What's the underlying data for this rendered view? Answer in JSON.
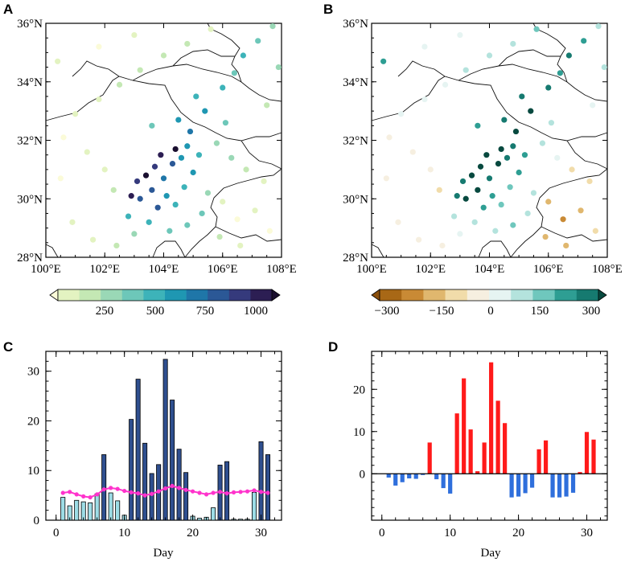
{
  "chart_data": [
    {
      "panel": "A",
      "type": "scatter",
      "title": "",
      "xlabel": "",
      "ylabel": "",
      "x_range": [
        100,
        108
      ],
      "y_range": [
        28,
        36
      ],
      "x_ticks": [
        "100°E",
        "102°E",
        "104°E",
        "106°E",
        "108°E"
      ],
      "y_ticks": [
        "28°N",
        "30°N",
        "32°N",
        "34°N",
        "36°N"
      ],
      "colorbar": {
        "labels": [
          "250",
          "500",
          "750",
          "1000"
        ],
        "range": [
          0,
          1100
        ],
        "colors": [
          "#fbfbd8",
          "#e3f3c1",
          "#c4e8b4",
          "#9ad8b6",
          "#6dc7b9",
          "#3db3b9",
          "#1f97b2",
          "#1f76a8",
          "#2b5896",
          "#353a7c",
          "#2c1e53",
          "#1a0f2f"
        ]
      },
      "points": [
        {
          "lon": 103.9,
          "lat": 31.5,
          "v": 980
        },
        {
          "lon": 104.4,
          "lat": 31.7,
          "v": 1050
        },
        {
          "lon": 103.7,
          "lat": 31.1,
          "v": 900
        },
        {
          "lon": 103.4,
          "lat": 30.8,
          "v": 1020
        },
        {
          "lon": 103.1,
          "lat": 30.6,
          "v": 860
        },
        {
          "lon": 102.9,
          "lat": 30.1,
          "v": 990
        },
        {
          "lon": 103.2,
          "lat": 30.0,
          "v": 780
        },
        {
          "lon": 103.6,
          "lat": 30.3,
          "v": 820
        },
        {
          "lon": 104.0,
          "lat": 30.7,
          "v": 700
        },
        {
          "lon": 104.3,
          "lat": 31.2,
          "v": 760
        },
        {
          "lon": 104.6,
          "lat": 31.4,
          "v": 640
        },
        {
          "lon": 104.8,
          "lat": 31.8,
          "v": 620
        },
        {
          "lon": 104.1,
          "lat": 30.1,
          "v": 600
        },
        {
          "lon": 103.8,
          "lat": 29.7,
          "v": 740
        },
        {
          "lon": 104.4,
          "lat": 29.8,
          "v": 520
        },
        {
          "lon": 104.7,
          "lat": 30.4,
          "v": 480
        },
        {
          "lon": 105.0,
          "lat": 30.9,
          "v": 560
        },
        {
          "lon": 105.2,
          "lat": 31.5,
          "v": 520
        },
        {
          "lon": 104.9,
          "lat": 32.3,
          "v": 660
        },
        {
          "lon": 104.5,
          "lat": 32.7,
          "v": 620
        },
        {
          "lon": 103.6,
          "lat": 32.5,
          "v": 450
        },
        {
          "lon": 105.4,
          "lat": 33.0,
          "v": 600
        },
        {
          "lon": 105.1,
          "lat": 33.5,
          "v": 520
        },
        {
          "lon": 106.0,
          "lat": 33.8,
          "v": 480
        },
        {
          "lon": 106.4,
          "lat": 34.3,
          "v": 430
        },
        {
          "lon": 106.7,
          "lat": 34.9,
          "v": 520
        },
        {
          "lon": 107.2,
          "lat": 35.4,
          "v": 440
        },
        {
          "lon": 107.7,
          "lat": 35.9,
          "v": 360
        },
        {
          "lon": 107.9,
          "lat": 34.5,
          "v": 300
        },
        {
          "lon": 107.5,
          "lat": 33.2,
          "v": 260
        },
        {
          "lon": 106.1,
          "lat": 32.6,
          "v": 380
        },
        {
          "lon": 105.8,
          "lat": 31.9,
          "v": 340
        },
        {
          "lon": 106.3,
          "lat": 31.4,
          "v": 280
        },
        {
          "lon": 106.8,
          "lat": 31.0,
          "v": 220
        },
        {
          "lon": 107.4,
          "lat": 30.6,
          "v": 160
        },
        {
          "lon": 107.1,
          "lat": 29.6,
          "v": 120
        },
        {
          "lon": 106.5,
          "lat": 29.3,
          "v": 90
        },
        {
          "lon": 106.0,
          "lat": 29.9,
          "v": 140
        },
        {
          "lon": 105.5,
          "lat": 30.2,
          "v": 330
        },
        {
          "lon": 105.3,
          "lat": 29.5,
          "v": 380
        },
        {
          "lon": 104.8,
          "lat": 29.1,
          "v": 400
        },
        {
          "lon": 104.2,
          "lat": 28.9,
          "v": 420
        },
        {
          "lon": 103.5,
          "lat": 29.2,
          "v": 540
        },
        {
          "lon": 102.8,
          "lat": 29.4,
          "v": 470
        },
        {
          "lon": 102.3,
          "lat": 30.3,
          "v": 260
        },
        {
          "lon": 102.0,
          "lat": 31.0,
          "v": 150
        },
        {
          "lon": 101.4,
          "lat": 31.6,
          "v": 110
        },
        {
          "lon": 100.6,
          "lat": 32.1,
          "v": 90
        },
        {
          "lon": 101.0,
          "lat": 32.9,
          "v": 120
        },
        {
          "lon": 101.8,
          "lat": 33.4,
          "v": 160
        },
        {
          "lon": 102.5,
          "lat": 33.9,
          "v": 190
        },
        {
          "lon": 103.2,
          "lat": 34.4,
          "v": 230
        },
        {
          "lon": 104.0,
          "lat": 34.9,
          "v": 240
        },
        {
          "lon": 104.8,
          "lat": 35.3,
          "v": 200
        },
        {
          "lon": 105.6,
          "lat": 35.8,
          "v": 170
        },
        {
          "lon": 103.0,
          "lat": 35.6,
          "v": 120
        },
        {
          "lon": 101.8,
          "lat": 35.2,
          "v": 80
        },
        {
          "lon": 100.4,
          "lat": 34.7,
          "v": 150
        },
        {
          "lon": 100.9,
          "lat": 29.2,
          "v": 110
        },
        {
          "lon": 101.6,
          "lat": 28.6,
          "v": 130
        },
        {
          "lon": 102.4,
          "lat": 28.4,
          "v": 240
        },
        {
          "lon": 103.0,
          "lat": 28.8,
          "v": 300
        },
        {
          "lon": 105.9,
          "lat": 28.7,
          "v": 210
        },
        {
          "lon": 106.6,
          "lat": 28.4,
          "v": 100
        },
        {
          "lon": 107.6,
          "lat": 28.9,
          "v": 70
        },
        {
          "lon": 100.5,
          "lat": 30.7,
          "v": 90
        }
      ]
    },
    {
      "panel": "B",
      "type": "scatter",
      "x_range": [
        100,
        108
      ],
      "y_range": [
        28,
        36
      ],
      "x_ticks": [
        "100°E",
        "102°E",
        "104°E",
        "106°E",
        "108°E"
      ],
      "y_ticks": [
        "28°N",
        "30°N",
        "32°N",
        "34°N",
        "36°N"
      ],
      "colorbar": {
        "labels": [
          "−300",
          "−150",
          "0",
          "150",
          "300"
        ],
        "range": [
          -300,
          300
        ],
        "colors": [
          "#8a4f0c",
          "#a86816",
          "#c98a35",
          "#e0b76e",
          "#f1dcaa",
          "#f6efe0",
          "#e6f4f2",
          "#b4e3dd",
          "#6fc7bd",
          "#2e9e93",
          "#167a70",
          "#07493f"
        ]
      },
      "points": [
        {
          "lon": 103.9,
          "lat": 31.5,
          "v": 300
        },
        {
          "lon": 104.4,
          "lat": 31.7,
          "v": 280
        },
        {
          "lon": 103.7,
          "lat": 31.1,
          "v": 310
        },
        {
          "lon": 103.4,
          "lat": 30.8,
          "v": 260
        },
        {
          "lon": 103.1,
          "lat": 30.6,
          "v": 240
        },
        {
          "lon": 102.9,
          "lat": 30.1,
          "v": 220
        },
        {
          "lon": 103.2,
          "lat": 30.0,
          "v": 250
        },
        {
          "lon": 103.6,
          "lat": 30.3,
          "v": 270
        },
        {
          "lon": 104.0,
          "lat": 30.7,
          "v": 230
        },
        {
          "lon": 104.3,
          "lat": 31.2,
          "v": 260
        },
        {
          "lon": 104.6,
          "lat": 31.4,
          "v": 240
        },
        {
          "lon": 104.8,
          "lat": 31.8,
          "v": 220
        },
        {
          "lon": 104.1,
          "lat": 30.1,
          "v": 180
        },
        {
          "lon": 103.8,
          "lat": 29.7,
          "v": 150
        },
        {
          "lon": 104.4,
          "lat": 29.8,
          "v": 120
        },
        {
          "lon": 104.7,
          "lat": 30.4,
          "v": 140
        },
        {
          "lon": 105.0,
          "lat": 30.9,
          "v": 170
        },
        {
          "lon": 105.2,
          "lat": 31.5,
          "v": 160
        },
        {
          "lon": 104.9,
          "lat": 32.3,
          "v": 250
        },
        {
          "lon": 104.5,
          "lat": 32.7,
          "v": 230
        },
        {
          "lon": 103.6,
          "lat": 32.5,
          "v": 180
        },
        {
          "lon": 105.4,
          "lat": 33.0,
          "v": 260
        },
        {
          "lon": 105.1,
          "lat": 33.5,
          "v": 240
        },
        {
          "lon": 106.0,
          "lat": 33.8,
          "v": 220
        },
        {
          "lon": 106.4,
          "lat": 34.3,
          "v": 180
        },
        {
          "lon": 106.7,
          "lat": 34.9,
          "v": 200
        },
        {
          "lon": 107.2,
          "lat": 35.4,
          "v": 150
        },
        {
          "lon": 107.7,
          "lat": 35.9,
          "v": 90
        },
        {
          "lon": 107.9,
          "lat": 34.5,
          "v": 60
        },
        {
          "lon": 107.5,
          "lat": 33.2,
          "v": 40
        },
        {
          "lon": 106.1,
          "lat": 32.6,
          "v": 50
        },
        {
          "lon": 105.8,
          "lat": 31.9,
          "v": 60
        },
        {
          "lon": 106.3,
          "lat": 31.4,
          "v": 20
        },
        {
          "lon": 106.8,
          "lat": 31.0,
          "v": -60
        },
        {
          "lon": 107.4,
          "lat": 30.6,
          "v": -90
        },
        {
          "lon": 107.1,
          "lat": 29.6,
          "v": -140
        },
        {
          "lon": 106.5,
          "lat": 29.3,
          "v": -160
        },
        {
          "lon": 106.0,
          "lat": 29.9,
          "v": -120
        },
        {
          "lon": 105.5,
          "lat": 30.2,
          "v": 70
        },
        {
          "lon": 105.3,
          "lat": 29.5,
          "v": 90
        },
        {
          "lon": 104.8,
          "lat": 29.1,
          "v": 100
        },
        {
          "lon": 104.2,
          "lat": 28.9,
          "v": 60
        },
        {
          "lon": 103.5,
          "lat": 29.2,
          "v": 80
        },
        {
          "lon": 102.8,
          "lat": 29.4,
          "v": 50
        },
        {
          "lon": 102.3,
          "lat": 30.3,
          "v": -60
        },
        {
          "lon": 102.0,
          "lat": 31.0,
          "v": -20
        },
        {
          "lon": 101.4,
          "lat": 31.6,
          "v": -30
        },
        {
          "lon": 100.6,
          "lat": 32.1,
          "v": -20
        },
        {
          "lon": 101.0,
          "lat": 32.9,
          "v": 10
        },
        {
          "lon": 101.8,
          "lat": 33.4,
          "v": 20
        },
        {
          "lon": 102.5,
          "lat": 33.9,
          "v": 40
        },
        {
          "lon": 103.2,
          "lat": 34.4,
          "v": 60
        },
        {
          "lon": 104.0,
          "lat": 34.9,
          "v": 80
        },
        {
          "lon": 104.8,
          "lat": 35.3,
          "v": 70
        },
        {
          "lon": 105.6,
          "lat": 35.8,
          "v": 130
        },
        {
          "lon": 103.0,
          "lat": 35.6,
          "v": 30
        },
        {
          "lon": 101.8,
          "lat": 35.2,
          "v": 10
        },
        {
          "lon": 100.4,
          "lat": 34.7,
          "v": 150
        },
        {
          "lon": 100.9,
          "lat": 29.2,
          "v": -30
        },
        {
          "lon": 101.6,
          "lat": 28.6,
          "v": -20
        },
        {
          "lon": 102.4,
          "lat": 28.4,
          "v": -40
        },
        {
          "lon": 103.0,
          "lat": 28.8,
          "v": 20
        },
        {
          "lon": 105.9,
          "lat": 28.7,
          "v": -110
        },
        {
          "lon": 106.6,
          "lat": 28.4,
          "v": -150
        },
        {
          "lon": 107.6,
          "lat": 28.9,
          "v": -100
        },
        {
          "lon": 100.5,
          "lat": 30.7,
          "v": -10
        }
      ]
    },
    {
      "panel": "C",
      "type": "bar",
      "xlabel": "Day",
      "ylabel": "",
      "xlim": [
        -1.5,
        33
      ],
      "ylim": [
        0,
        34
      ],
      "x_ticks": [
        "0",
        "10",
        "20",
        "30"
      ],
      "y_ticks": [
        "0",
        "10",
        "20",
        "30"
      ],
      "days": [
        1,
        2,
        3,
        4,
        5,
        6,
        7,
        8,
        9,
        10,
        11,
        12,
        13,
        14,
        15,
        16,
        17,
        18,
        19,
        20,
        21,
        22,
        23,
        24,
        25,
        26,
        27,
        28,
        29,
        30,
        31
      ],
      "values": [
        4.6,
        2.9,
        4.0,
        3.7,
        3.5,
        5.3,
        13.2,
        5.5,
        3.9,
        1.0,
        20.3,
        28.4,
        15.5,
        9.4,
        11.2,
        32.4,
        24.2,
        14.3,
        9.6,
        0.8,
        0.4,
        0.6,
        2.5,
        11.1,
        11.8,
        0.2,
        0.2,
        0.2,
        5.6,
        15.8,
        13.2
      ],
      "line_values": [
        5.5,
        5.7,
        5.2,
        4.8,
        4.6,
        5.2,
        6.2,
        6.5,
        6.3,
        5.9,
        5.6,
        5.4,
        5.0,
        5.3,
        5.8,
        6.4,
        6.9,
        6.5,
        6.1,
        5.8,
        5.5,
        5.2,
        5.5,
        5.7,
        5.4,
        5.6,
        5.7,
        5.8,
        6.0,
        5.7,
        5.5
      ],
      "colors": {
        "high": "#2f4f8f",
        "low": "#9ddde6",
        "line": "#ff33cc"
      }
    },
    {
      "panel": "D",
      "type": "bar",
      "xlabel": "Day",
      "ylabel": "",
      "xlim": [
        -1.5,
        33
      ],
      "ylim": [
        -11,
        29
      ],
      "x_ticks": [
        "0",
        "10",
        "20",
        "30"
      ],
      "y_ticks": [
        "0",
        "10",
        "20"
      ],
      "days": [
        1,
        2,
        3,
        4,
        5,
        6,
        7,
        8,
        9,
        10,
        11,
        12,
        13,
        14,
        15,
        16,
        17,
        18,
        19,
        20,
        21,
        22,
        23,
        24,
        25,
        26,
        27,
        28,
        29,
        30,
        31
      ],
      "values": [
        -0.9,
        -2.8,
        -2.0,
        -1.1,
        -1.2,
        -0.3,
        7.4,
        -1.3,
        -3.4,
        -4.7,
        14.3,
        22.6,
        10.5,
        0.6,
        7.4,
        26.4,
        17.3,
        12.0,
        -5.6,
        -5.4,
        -4.6,
        -3.3,
        5.8,
        7.9,
        -5.6,
        -5.6,
        -5.4,
        -4.5,
        0.4,
        9.9,
        8.1
      ],
      "colors": {
        "positive": "#ff1a1a",
        "negative": "#2f6fdc"
      }
    }
  ],
  "panels": {
    "a": "A",
    "b": "B",
    "c": "C",
    "d": "D"
  }
}
